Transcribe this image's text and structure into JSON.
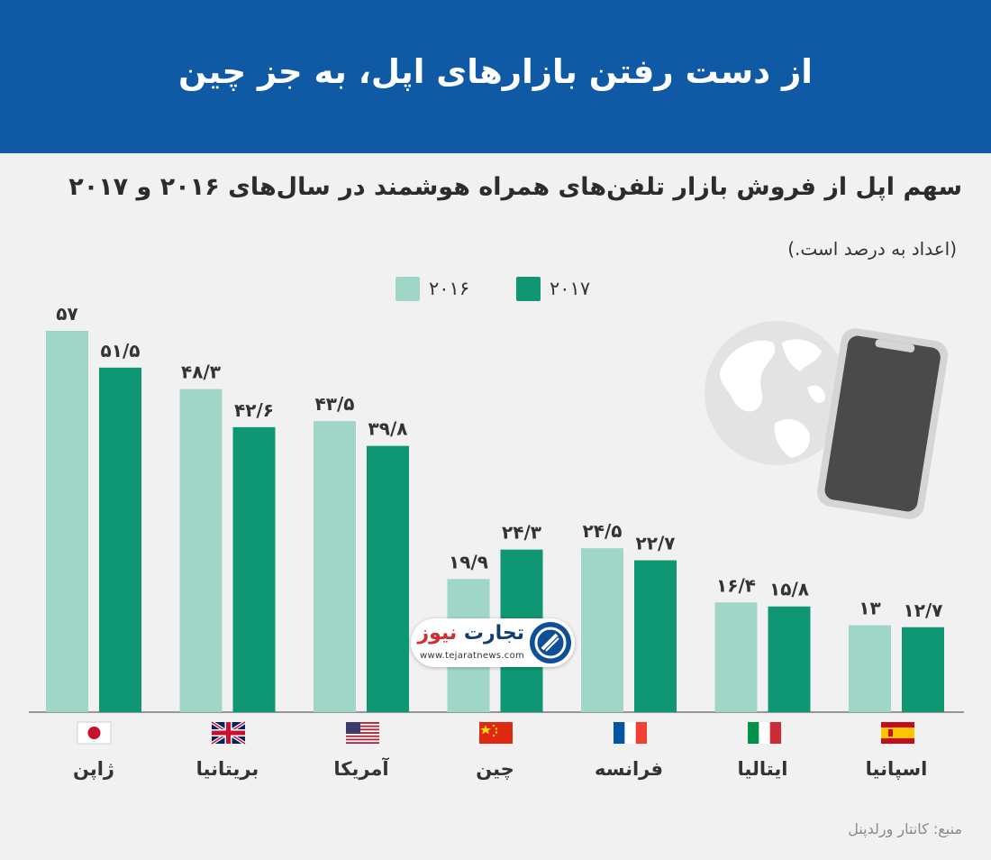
{
  "header": {
    "title": "از دست رفتن بازارهای اپل، به جز چین"
  },
  "subtitle": "سهم اپل از فروش بازار تلفن‌های همراه هوشمند در سال‌های ۲۰۱۶ و ۲۰۱۷",
  "note": "(اعداد به درصد است.)",
  "source": "منبع: کانتار ورلدپنل",
  "watermark": {
    "brand": "تجارت",
    "brand_accent": "نیوز",
    "url": "www.tejaratnews.com"
  },
  "colors": {
    "header": "#0f59a5",
    "series_2016": "#a0d6c8",
    "series_2017": "#0f9673",
    "background": "#f1f1f1"
  },
  "icons": [
    "globe-icon",
    "smartphone-icon"
  ],
  "chart_data": {
    "type": "bar",
    "categories": [
      "ژاپن",
      "بریتانیا",
      "آمریکا",
      "چین",
      "فرانسه",
      "ایتالیا",
      "اسپانیا"
    ],
    "flags": [
      "japan-flag-icon",
      "uk-flag-icon",
      "usa-flag-icon",
      "china-flag-icon",
      "france-flag-icon",
      "italy-flag-icon",
      "spain-flag-icon"
    ],
    "series": [
      {
        "name": "۲۰۱۶",
        "color": "#a0d6c8",
        "values": [
          57,
          48.3,
          43.5,
          19.9,
          24.5,
          16.4,
          13
        ],
        "labels": [
          "۵۷",
          "۴۸/۳",
          "۴۳/۵",
          "۱۹/۹",
          "۲۴/۵",
          "۱۶/۴",
          "۱۳"
        ]
      },
      {
        "name": "۲۰۱۷",
        "color": "#0f9673",
        "values": [
          51.5,
          42.6,
          39.8,
          24.3,
          22.7,
          15.8,
          12.7
        ],
        "labels": [
          "۵۱/۵",
          "۴۲/۶",
          "۳۹/۸",
          "۲۴/۳",
          "۲۲/۷",
          "۱۵/۸",
          "۱۲/۷"
        ]
      }
    ],
    "ylim": [
      0,
      57
    ],
    "grid": false,
    "legend": "top-center"
  }
}
